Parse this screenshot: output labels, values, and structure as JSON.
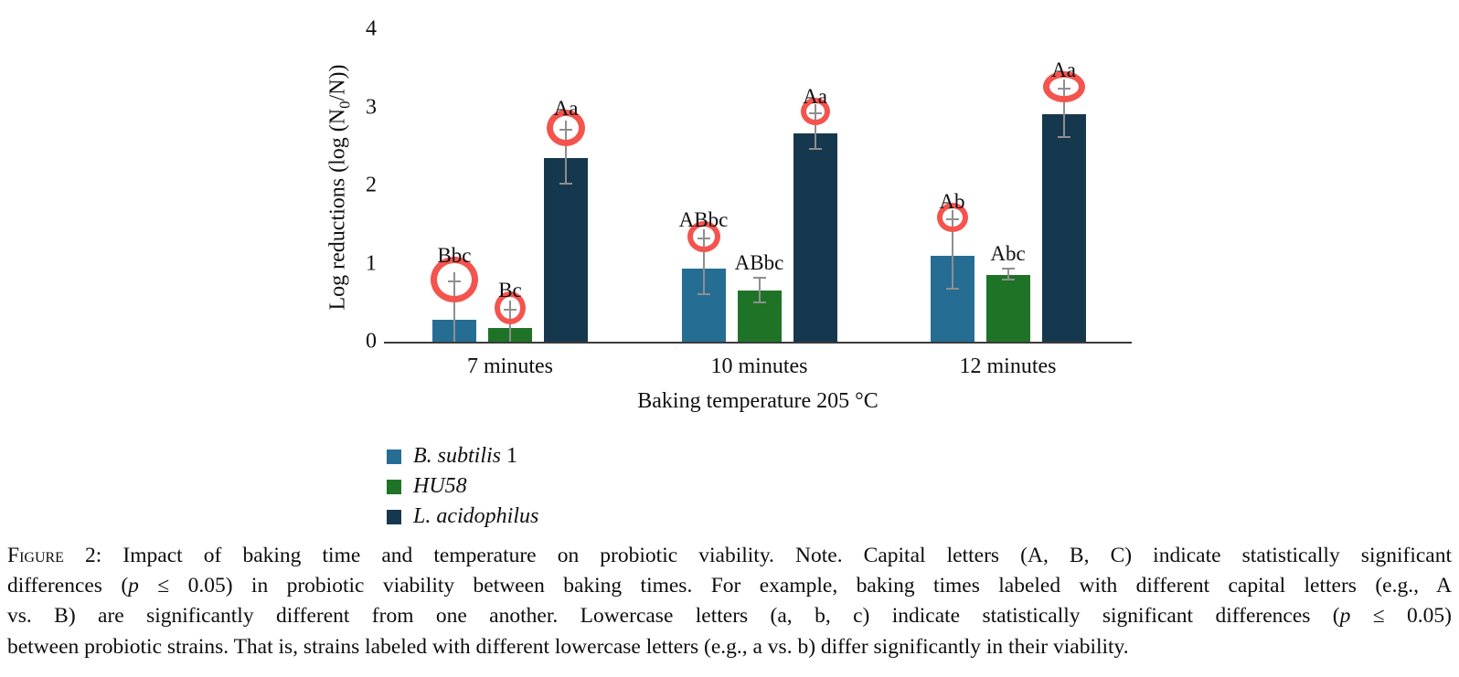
{
  "figure": {
    "y_axis": {
      "label_pre": "Log reductions (log (N",
      "label_sub": "0",
      "label_post": "/N))",
      "ticks": [
        "4",
        "3",
        "2",
        "1",
        "0"
      ]
    },
    "x_axis": {
      "title": "Baking temperature 205 °C",
      "categories": [
        "7 minutes",
        "10 minutes",
        "12 minutes"
      ]
    },
    "legend": [
      {
        "color": "#266d94",
        "italic": "B. subtilis",
        "suffix": " 1"
      },
      {
        "color": "#1e7327",
        "italic": "HU58",
        "suffix": ""
      },
      {
        "color": "#16384e",
        "italic": "L. acidophilus",
        "suffix": ""
      }
    ],
    "annotation_color": "#f4544e",
    "error_bar_color": "#8f8f8f"
  },
  "chart_data": {
    "type": "bar",
    "title": "",
    "categories": [
      "7 minutes",
      "10 minutes",
      "12 minutes"
    ],
    "xlabel": "Baking temperature 205 °C",
    "ylabel": "Log reductions (log (N0/N))",
    "ylim": [
      0,
      4
    ],
    "grid": false,
    "legend_position": "bottom-left",
    "series": [
      {
        "name": "B. subtilis 1",
        "color": "#266d94",
        "values": [
          0.28,
          0.93,
          1.1
        ],
        "err_top": [
          0.77,
          1.32,
          1.57
        ],
        "err_bottom": [
          0,
          0.61,
          0.68
        ],
        "labels": [
          "Bbc",
          "ABbc",
          "Ab"
        ],
        "circled": [
          true,
          true,
          true
        ],
        "circle_rx": [
          26,
          18,
          17
        ],
        "circle_ry": [
          25,
          17,
          16
        ]
      },
      {
        "name": "HU58",
        "color": "#1e7327",
        "values": [
          0.18,
          0.66,
          0.85
        ],
        "err_top": [
          0.41,
          0.82,
          0.93
        ],
        "err_bottom": [
          0,
          0.5,
          0.79
        ],
        "labels": [
          "Bc",
          "ABbc",
          "Abc"
        ],
        "circled": [
          true,
          false,
          false
        ],
        "circle_rx": [
          17,
          null,
          null
        ],
        "circle_ry": [
          18,
          null,
          null
        ]
      },
      {
        "name": "L. acidophilus",
        "color": "#16384e",
        "values": [
          2.35,
          2.67,
          2.91
        ],
        "err_top": [
          2.71,
          2.92,
          3.24
        ],
        "err_bottom": [
          2.02,
          2.47,
          2.62
        ],
        "labels": [
          "Aa",
          "Aa",
          "Aa"
        ],
        "circled": [
          true,
          true,
          true
        ],
        "circle_rx": [
          21,
          16,
          23
        ],
        "circle_ry": [
          20,
          15,
          17
        ]
      }
    ]
  },
  "caption": {
    "lines": [
      [
        {
          "t": "Figure",
          "style": "smallcaps"
        },
        {
          "t": " 2: Impact of baking time and temperature on probiotic viability. Note. Capital letters (A, B, C) indicate statistically significant",
          "style": "normal"
        }
      ],
      [
        {
          "t": "differences (",
          "style": "normal"
        },
        {
          "t": "p",
          "style": "italic"
        },
        {
          "t": " ≤ 0.05) in probiotic viability between baking times. For example, baking times labeled with different capital letters (e.g., A",
          "style": "normal"
        }
      ],
      [
        {
          "t": "vs. B) are significantly different from one another. Lowercase letters (a, b, c) indicate statistically significant differences (",
          "style": "normal"
        },
        {
          "t": "p",
          "style": "italic"
        },
        {
          "t": " ≤ 0.05)",
          "style": "normal"
        }
      ],
      [
        {
          "t": "between probiotic strains. That is, strains labeled with different lowercase letters (e.g., a vs. b) differ significantly in their viability.",
          "style": "normal"
        }
      ]
    ]
  }
}
